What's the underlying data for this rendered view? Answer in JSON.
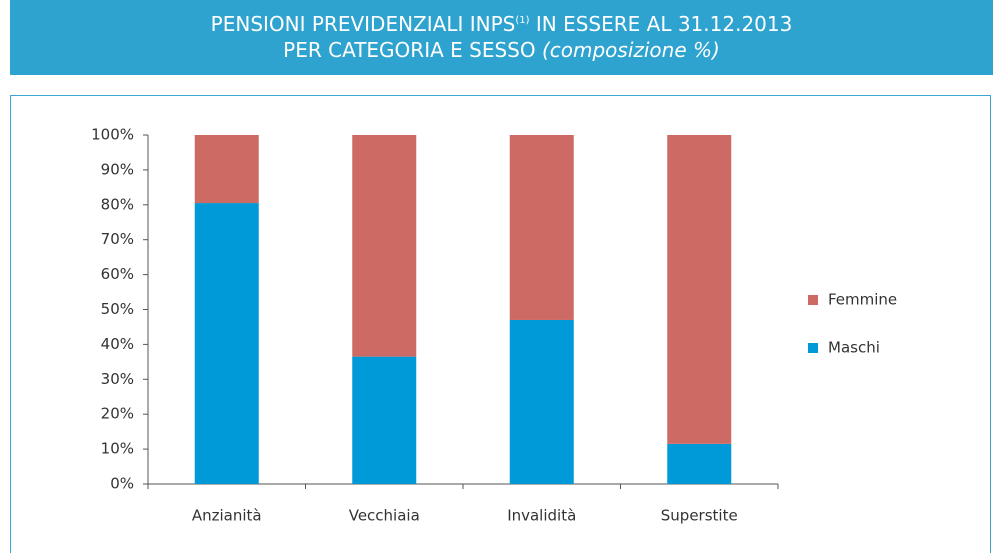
{
  "chart_data": {
    "type": "stacked_bar",
    "title": {
      "line1": "PENSIONI PREVIDENZIALI INPS",
      "note": "(1)",
      "line1_end": " IN ESSERE AL 31.12.2013",
      "line2": "PER CATEGORIA E SESSO ",
      "line2_italic": "(composizione %)"
    },
    "categories": [
      "Anzianità",
      "Vecchiaia",
      "Invalidità",
      "Superstite"
    ],
    "series": [
      {
        "name": "Maschi",
        "color": "#009ad9",
        "values": [
          80.5,
          36.5,
          47,
          11.5
        ]
      },
      {
        "name": "Femmine",
        "color": "#cd6a64",
        "values": [
          19.5,
          63.5,
          53,
          88.5
        ]
      }
    ],
    "ylim": [
      0,
      100
    ],
    "yticks": [
      {
        "value": 0,
        "label": "0%"
      },
      {
        "value": 10,
        "label": "10%"
      },
      {
        "value": 20,
        "label": "20%"
      },
      {
        "value": 30,
        "label": "30%"
      },
      {
        "value": 40,
        "label": "40%"
      },
      {
        "value": 50,
        "label": "50%"
      },
      {
        "value": 60,
        "label": "60%"
      },
      {
        "value": 70,
        "label": "70%"
      },
      {
        "value": 80,
        "label": "80%"
      },
      {
        "value": 90,
        "label": "90%"
      },
      {
        "value": 100,
        "label": "100%"
      }
    ],
    "legend": "right"
  }
}
